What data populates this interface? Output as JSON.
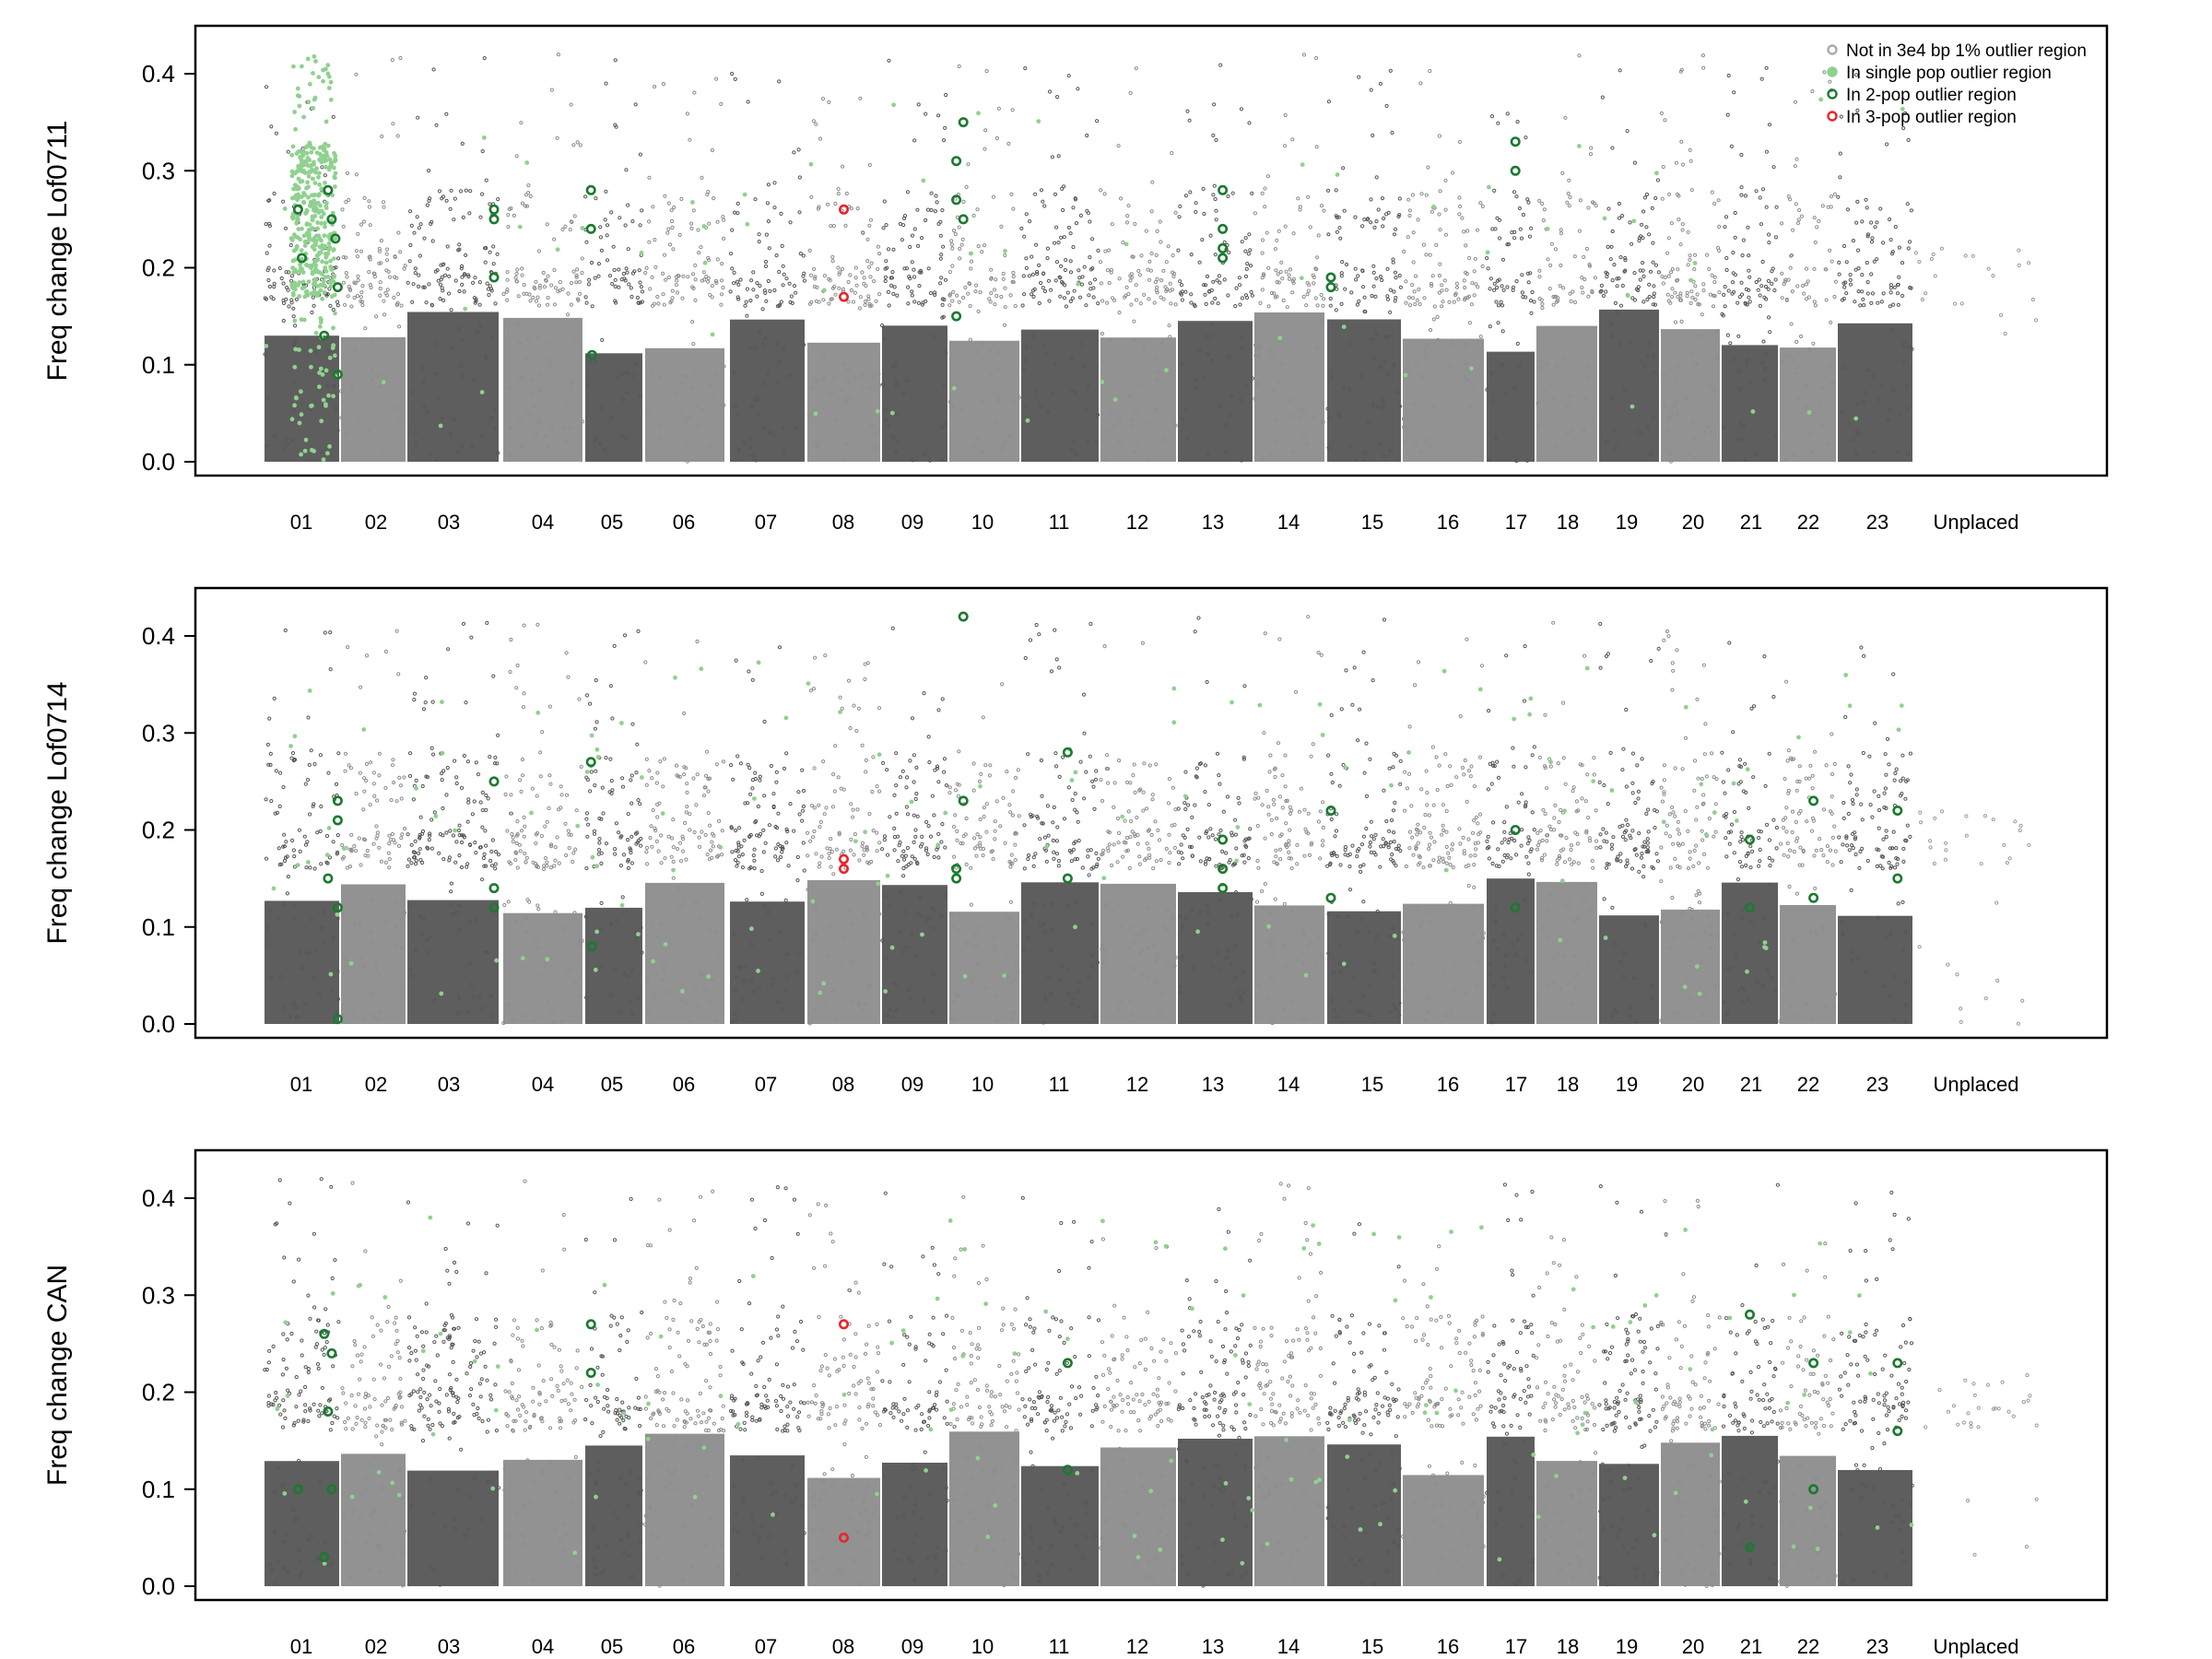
{
  "figure_title": "",
  "chart_data": [
    {
      "type": "scatter",
      "title": "",
      "ylabel": "Freq change Lof0711",
      "xlabel": "",
      "ylim": [
        0,
        0.47
      ],
      "yticks": [
        "0.0",
        "0.1",
        "0.2",
        "0.3",
        "0.4"
      ],
      "legend": {
        "position": "top-right",
        "entries": [
          {
            "label": "Not in 3e4 bp 1% outlier region",
            "color": "#aaaaaa"
          },
          {
            "label": "In single pop outlier region",
            "color": "#8fd18f"
          },
          {
            "label": "In 2-pop outlier region",
            "color": "#1a7a2e"
          },
          {
            "label": "In 3-pop outlier region",
            "color": "#e8262a"
          }
        ]
      },
      "chromosomes": [
        "01",
        "02",
        "03",
        "04",
        "05",
        "06",
        "07",
        "08",
        "09",
        "10",
        "11",
        "12",
        "13",
        "14",
        "15",
        "16",
        "17",
        "18",
        "19",
        "20",
        "21",
        "22",
        "23",
        "Unplaced"
      ],
      "two_pop_outliers": [
        {
          "chrom": "01",
          "x": 0.45,
          "y": 0.26
        },
        {
          "chrom": "01",
          "x": 0.5,
          "y": 0.21
        },
        {
          "chrom": "01",
          "x": 0.85,
          "y": 0.28
        },
        {
          "chrom": "01",
          "x": 0.9,
          "y": 0.25
        },
        {
          "chrom": "01",
          "x": 0.95,
          "y": 0.23
        },
        {
          "chrom": "01",
          "x": 0.8,
          "y": 0.13
        },
        {
          "chrom": "01",
          "x": 0.98,
          "y": 0.09
        },
        {
          "chrom": "01",
          "x": 0.98,
          "y": 0.18
        },
        {
          "chrom": "03",
          "x": 0.95,
          "y": 0.26
        },
        {
          "chrom": "03",
          "x": 0.95,
          "y": 0.25
        },
        {
          "chrom": "03",
          "x": 0.95,
          "y": 0.19
        },
        {
          "chrom": "05",
          "x": 0.1,
          "y": 0.28
        },
        {
          "chrom": "05",
          "x": 0.1,
          "y": 0.24
        },
        {
          "chrom": "05",
          "x": 0.12,
          "y": 0.11
        },
        {
          "chrom": "10",
          "x": 0.2,
          "y": 0.35
        },
        {
          "chrom": "10",
          "x": 0.1,
          "y": 0.31
        },
        {
          "chrom": "10",
          "x": 0.1,
          "y": 0.27
        },
        {
          "chrom": "10",
          "x": 0.2,
          "y": 0.25
        },
        {
          "chrom": "10",
          "x": 0.1,
          "y": 0.15
        },
        {
          "chrom": "13",
          "x": 0.6,
          "y": 0.28
        },
        {
          "chrom": "13",
          "x": 0.6,
          "y": 0.24
        },
        {
          "chrom": "13",
          "x": 0.6,
          "y": 0.22
        },
        {
          "chrom": "13",
          "x": 0.6,
          "y": 0.21
        },
        {
          "chrom": "15",
          "x": 0.05,
          "y": 0.19
        },
        {
          "chrom": "15",
          "x": 0.05,
          "y": 0.18
        },
        {
          "chrom": "17",
          "x": 0.6,
          "y": 0.33
        },
        {
          "chrom": "17",
          "x": 0.6,
          "y": 0.3
        }
      ],
      "three_pop_outliers": [
        {
          "chrom": "08",
          "x": 0.5,
          "y": 0.26
        },
        {
          "chrom": "08",
          "x": 0.5,
          "y": 0.17
        }
      ]
    },
    {
      "type": "scatter",
      "title": "",
      "ylabel": "Freq change Lof0714",
      "xlabel": "",
      "ylim": [
        0,
        0.47
      ],
      "yticks": [
        "0.0",
        "0.1",
        "0.2",
        "0.3",
        "0.4"
      ],
      "chromosomes": [
        "01",
        "02",
        "03",
        "04",
        "05",
        "06",
        "07",
        "08",
        "09",
        "10",
        "11",
        "12",
        "13",
        "14",
        "15",
        "16",
        "17",
        "18",
        "19",
        "20",
        "21",
        "22",
        "23",
        "Unplaced"
      ],
      "two_pop_outliers": [
        {
          "chrom": "01",
          "x": 0.85,
          "y": 0.15
        },
        {
          "chrom": "01",
          "x": 0.98,
          "y": 0.23
        },
        {
          "chrom": "01",
          "x": 0.98,
          "y": 0.21
        },
        {
          "chrom": "01",
          "x": 0.98,
          "y": 0.12
        },
        {
          "chrom": "01",
          "x": 0.98,
          "y": 0.005
        },
        {
          "chrom": "03",
          "x": 0.95,
          "y": 0.25
        },
        {
          "chrom": "03",
          "x": 0.95,
          "y": 0.14
        },
        {
          "chrom": "03",
          "x": 0.95,
          "y": 0.12
        },
        {
          "chrom": "05",
          "x": 0.1,
          "y": 0.27
        },
        {
          "chrom": "05",
          "x": 0.12,
          "y": 0.08
        },
        {
          "chrom": "10",
          "x": 0.2,
          "y": 0.42
        },
        {
          "chrom": "10",
          "x": 0.2,
          "y": 0.23
        },
        {
          "chrom": "10",
          "x": 0.1,
          "y": 0.16
        },
        {
          "chrom": "10",
          "x": 0.1,
          "y": 0.15
        },
        {
          "chrom": "11",
          "x": 0.6,
          "y": 0.28
        },
        {
          "chrom": "11",
          "x": 0.6,
          "y": 0.15
        },
        {
          "chrom": "13",
          "x": 0.6,
          "y": 0.19
        },
        {
          "chrom": "13",
          "x": 0.6,
          "y": 0.16
        },
        {
          "chrom": "13",
          "x": 0.6,
          "y": 0.14
        },
        {
          "chrom": "15",
          "x": 0.05,
          "y": 0.22
        },
        {
          "chrom": "15",
          "x": 0.05,
          "y": 0.13
        },
        {
          "chrom": "17",
          "x": 0.6,
          "y": 0.2
        },
        {
          "chrom": "17",
          "x": 0.6,
          "y": 0.12
        },
        {
          "chrom": "21",
          "x": 0.5,
          "y": 0.19
        },
        {
          "chrom": "21",
          "x": 0.5,
          "y": 0.12
        },
        {
          "chrom": "22",
          "x": 0.6,
          "y": 0.23
        },
        {
          "chrom": "22",
          "x": 0.6,
          "y": 0.13
        },
        {
          "chrom": "23",
          "x": 0.8,
          "y": 0.22
        },
        {
          "chrom": "23",
          "x": 0.8,
          "y": 0.15
        }
      ],
      "three_pop_outliers": [
        {
          "chrom": "08",
          "x": 0.5,
          "y": 0.17
        },
        {
          "chrom": "08",
          "x": 0.5,
          "y": 0.16
        }
      ]
    },
    {
      "type": "scatter",
      "title": "",
      "ylabel": "Freq change CAN",
      "xlabel": "",
      "ylim": [
        0,
        0.47
      ],
      "yticks": [
        "0.0",
        "0.1",
        "0.2",
        "0.3",
        "0.4"
      ],
      "chromosomes": [
        "01",
        "02",
        "03",
        "04",
        "05",
        "06",
        "07",
        "08",
        "09",
        "10",
        "11",
        "12",
        "13",
        "14",
        "15",
        "16",
        "17",
        "18",
        "19",
        "20",
        "21",
        "22",
        "23",
        "Unplaced"
      ],
      "two_pop_outliers": [
        {
          "chrom": "01",
          "x": 0.8,
          "y": 0.26
        },
        {
          "chrom": "01",
          "x": 0.9,
          "y": 0.24
        },
        {
          "chrom": "01",
          "x": 0.85,
          "y": 0.18
        },
        {
          "chrom": "01",
          "x": 0.9,
          "y": 0.1
        },
        {
          "chrom": "01",
          "x": 0.45,
          "y": 0.1
        },
        {
          "chrom": "01",
          "x": 0.8,
          "y": 0.03
        },
        {
          "chrom": "05",
          "x": 0.1,
          "y": 0.27
        },
        {
          "chrom": "05",
          "x": 0.1,
          "y": 0.22
        },
        {
          "chrom": "11",
          "x": 0.6,
          "y": 0.23
        },
        {
          "chrom": "11",
          "x": 0.6,
          "y": 0.12
        },
        {
          "chrom": "21",
          "x": 0.5,
          "y": 0.28
        },
        {
          "chrom": "21",
          "x": 0.5,
          "y": 0.04
        },
        {
          "chrom": "22",
          "x": 0.6,
          "y": 0.23
        },
        {
          "chrom": "22",
          "x": 0.6,
          "y": 0.1
        },
        {
          "chrom": "23",
          "x": 0.8,
          "y": 0.23
        },
        {
          "chrom": "23",
          "x": 0.8,
          "y": 0.16
        }
      ],
      "three_pop_outliers": [
        {
          "chrom": "08",
          "x": 0.5,
          "y": 0.27
        },
        {
          "chrom": "08",
          "x": 0.5,
          "y": 0.05
        }
      ]
    }
  ]
}
